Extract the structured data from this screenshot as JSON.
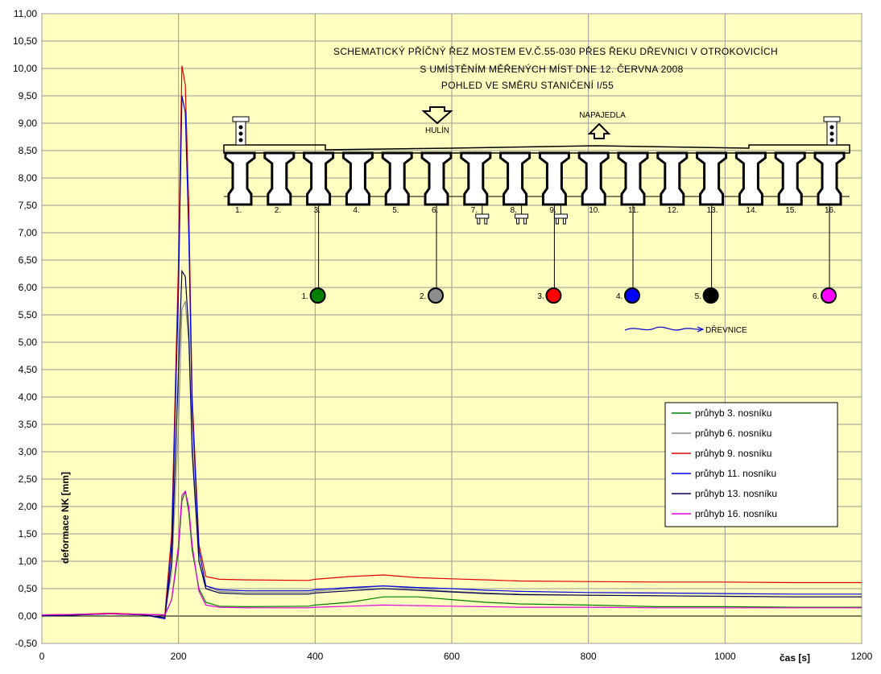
{
  "chart_data": {
    "type": "line",
    "title_lines": [
      "SCHEMATICKÝ PŘÍČNÝ ŘEZ MOSTEM EV.Č.55-030 PŘES ŘEKU DŘEVNICI V OTROKOVICÍCH",
      "S UMÍSTĚNÍM MĚŘENÝCH MÍST DNE 12. ČERVNA 2008",
      "POHLED VE SMĚRU STANIČENÍ I/55"
    ],
    "xlabel": "čas [s]",
    "ylabel": "deformace NK [mm]",
    "xlim": [
      0,
      1200
    ],
    "ylim": [
      -0.5,
      11.0
    ],
    "x_ticks": [
      "0",
      "200",
      "400",
      "600",
      "800",
      "1000",
      "1200"
    ],
    "y_ticks": [
      "-0,50",
      "0,00",
      "0,50",
      "1,00",
      "1,50",
      "2,00",
      "2,50",
      "3,00",
      "3,50",
      "4,00",
      "4,50",
      "5,00",
      "5,50",
      "6,00",
      "6,50",
      "7,00",
      "7,50",
      "8,00",
      "8,50",
      "9,00",
      "9,50",
      "10,00",
      "10,50",
      "11,00"
    ],
    "grid": true,
    "legend_position": "right",
    "series": [
      {
        "name": "průhyb 3. nosníku",
        "color": "#007f00",
        "x": [
          0,
          50,
          100,
          150,
          180,
          190,
          200,
          205,
          210,
          215,
          220,
          230,
          240,
          260,
          300,
          390,
          400,
          450,
          500,
          550,
          600,
          650,
          700,
          800,
          900,
          1000,
          1100,
          1200
        ],
        "y": [
          0.02,
          0.03,
          0.05,
          0.03,
          0.02,
          0.3,
          1.2,
          2.1,
          2.28,
          1.9,
          1.2,
          0.5,
          0.25,
          0.18,
          0.17,
          0.18,
          0.2,
          0.25,
          0.35,
          0.35,
          0.3,
          0.25,
          0.22,
          0.2,
          0.17,
          0.17,
          0.16,
          0.16
        ]
      },
      {
        "name": "průhyb 6. nosníku",
        "color": "#8c8c8c",
        "x": [
          0,
          50,
          100,
          150,
          180,
          190,
          200,
          205,
          210,
          215,
          220,
          230,
          240,
          260,
          300,
          390,
          400,
          450,
          500,
          550,
          600,
          650,
          700,
          800,
          900,
          1000,
          1100,
          1200
        ],
        "y": [
          0.02,
          0.03,
          0.05,
          0.03,
          0.02,
          0.8,
          3.5,
          5.6,
          5.75,
          5.0,
          3.2,
          1.0,
          0.55,
          0.45,
          0.43,
          0.43,
          0.45,
          0.5,
          0.55,
          0.5,
          0.45,
          0.42,
          0.4,
          0.38,
          0.37,
          0.36,
          0.35,
          0.35
        ]
      },
      {
        "name": "průhyb 9. nosníku",
        "color": "#e00000",
        "x": [
          0,
          50,
          100,
          150,
          180,
          190,
          200,
          205,
          210,
          215,
          220,
          230,
          240,
          260,
          300,
          390,
          400,
          450,
          500,
          550,
          600,
          650,
          700,
          800,
          900,
          1000,
          1100,
          1200
        ],
        "y": [
          0.02,
          0.03,
          0.05,
          0.03,
          0.02,
          1.5,
          6.5,
          10.05,
          9.7,
          7.5,
          4.0,
          1.3,
          0.72,
          0.67,
          0.66,
          0.65,
          0.67,
          0.72,
          0.75,
          0.7,
          0.68,
          0.66,
          0.64,
          0.63,
          0.62,
          0.62,
          0.61,
          0.61
        ]
      },
      {
        "name": "průhyb 11. nosníku",
        "color": "#0000e0",
        "x": [
          0,
          50,
          100,
          150,
          180,
          190,
          200,
          205,
          210,
          215,
          220,
          230,
          240,
          260,
          300,
          390,
          400,
          450,
          500,
          550,
          600,
          650,
          700,
          800,
          900,
          1000,
          1100,
          1200
        ],
        "y": [
          0.0,
          0.02,
          0.04,
          0.02,
          -0.05,
          1.3,
          6.0,
          9.5,
          9.2,
          7.0,
          3.8,
          1.2,
          0.55,
          0.48,
          0.46,
          0.46,
          0.48,
          0.52,
          0.55,
          0.52,
          0.5,
          0.47,
          0.45,
          0.43,
          0.42,
          0.41,
          0.4,
          0.4
        ]
      },
      {
        "name": "průhyb 13. nosníku",
        "color": "#000050",
        "x": [
          0,
          50,
          100,
          150,
          180,
          190,
          200,
          205,
          210,
          215,
          220,
          230,
          240,
          260,
          300,
          390,
          400,
          450,
          500,
          550,
          600,
          650,
          700,
          800,
          900,
          1000,
          1100,
          1200
        ],
        "y": [
          0.0,
          0.02,
          0.04,
          0.02,
          -0.03,
          1.0,
          4.5,
          6.3,
          6.2,
          5.2,
          3.0,
          1.0,
          0.5,
          0.42,
          0.4,
          0.4,
          0.42,
          0.46,
          0.5,
          0.47,
          0.44,
          0.41,
          0.39,
          0.38,
          0.37,
          0.36,
          0.35,
          0.35
        ]
      },
      {
        "name": "průhyb 16. nosníku",
        "color": "#e000e0",
        "x": [
          0,
          50,
          100,
          150,
          180,
          190,
          200,
          205,
          210,
          215,
          220,
          230,
          240,
          260,
          300,
          390,
          400,
          450,
          500,
          550,
          600,
          650,
          700,
          800,
          900,
          1000,
          1100,
          1200
        ],
        "y": [
          0.02,
          0.03,
          0.04,
          0.03,
          0.02,
          0.3,
          1.3,
          2.2,
          2.28,
          2.0,
          1.3,
          0.45,
          0.2,
          0.16,
          0.15,
          0.15,
          0.16,
          0.18,
          0.2,
          0.19,
          0.18,
          0.17,
          0.16,
          0.16,
          0.15,
          0.15,
          0.15,
          0.15
        ]
      }
    ],
    "diagram": {
      "hulin_label": "HULÍN",
      "napajedla_label": "NAPAJEDLA",
      "river_label": "DŘEVNICE",
      "beam_labels": [
        "1.",
        "2.",
        "3.",
        "4.",
        "5.",
        "6.",
        "7.",
        "8.",
        "9.",
        "10.",
        "11.",
        "12.",
        "13.",
        "14.",
        "15.",
        "16."
      ],
      "points": [
        {
          "label": "1.",
          "color": "#007f00"
        },
        {
          "label": "2.",
          "color": "#8c8c8c"
        },
        {
          "label": "3.",
          "color": "#ff0000"
        },
        {
          "label": "4.",
          "color": "#0000ff"
        },
        {
          "label": "5.",
          "color": "#000000"
        },
        {
          "label": "6.",
          "color": "#ff00ff"
        }
      ]
    },
    "colors": {
      "plot_bg": "#ffffc0",
      "grid": "#9a9a9a"
    }
  }
}
